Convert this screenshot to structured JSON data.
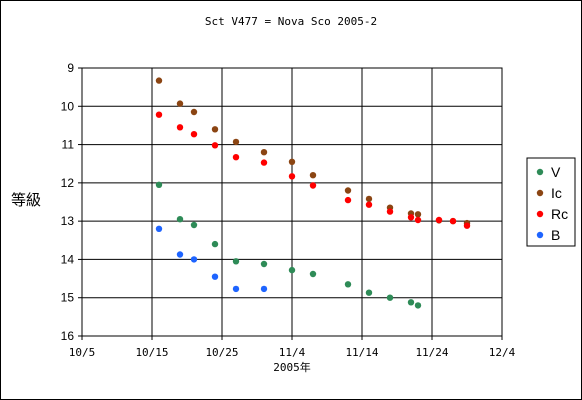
{
  "chart_data": {
    "type": "scatter",
    "title": "Sct V477 = Nova Sco 2005-2",
    "xlabel": "2005年",
    "ylabel": "等級",
    "x_ticks": [
      "10/5",
      "10/15",
      "10/25",
      "11/4",
      "11/14",
      "11/24",
      "12/4"
    ],
    "xlim": [
      "2005-10-05",
      "2005-12-04"
    ],
    "y_ticks": [
      "9",
      "10",
      "11",
      "12",
      "13",
      "14",
      "15",
      "16"
    ],
    "ylim": [
      16,
      9
    ],
    "y_inverted": true,
    "grid": true,
    "legend_position": "right",
    "series": [
      {
        "name": "V",
        "color": "#2e8b57",
        "points": [
          [
            "2005-10-16",
            12.05
          ],
          [
            "2005-10-19",
            12.95
          ],
          [
            "2005-10-21",
            13.1
          ],
          [
            "2005-10-24",
            13.6
          ],
          [
            "2005-10-27",
            14.05
          ],
          [
            "2005-10-31",
            14.12
          ],
          [
            "2005-11-04",
            14.28
          ],
          [
            "2005-11-07",
            14.38
          ],
          [
            "2005-11-12",
            14.65
          ],
          [
            "2005-11-15",
            14.87
          ],
          [
            "2005-11-18",
            15.0
          ],
          [
            "2005-11-21",
            15.12
          ],
          [
            "2005-11-22",
            15.2
          ]
        ]
      },
      {
        "name": "Ic",
        "color": "#8b4513",
        "points": [
          [
            "2005-10-16",
            9.33
          ],
          [
            "2005-10-19",
            9.93
          ],
          [
            "2005-10-21",
            10.15
          ],
          [
            "2005-10-24",
            10.6
          ],
          [
            "2005-10-27",
            10.93
          ],
          [
            "2005-10-31",
            11.2
          ],
          [
            "2005-11-04",
            11.45
          ],
          [
            "2005-11-07",
            11.8
          ],
          [
            "2005-11-12",
            12.2
          ],
          [
            "2005-11-15",
            12.42
          ],
          [
            "2005-11-18",
            12.65
          ],
          [
            "2005-11-21",
            12.8
          ],
          [
            "2005-11-22",
            12.82
          ],
          [
            "2005-11-25",
            12.98
          ],
          [
            "2005-11-27",
            13.0
          ],
          [
            "2005-11-29",
            13.05
          ]
        ]
      },
      {
        "name": "Rc",
        "color": "#ff0000",
        "points": [
          [
            "2005-10-16",
            10.22
          ],
          [
            "2005-10-19",
            10.55
          ],
          [
            "2005-10-21",
            10.73
          ],
          [
            "2005-10-24",
            11.02
          ],
          [
            "2005-10-27",
            11.33
          ],
          [
            "2005-10-31",
            11.47
          ],
          [
            "2005-11-04",
            11.83
          ],
          [
            "2005-11-07",
            12.07
          ],
          [
            "2005-11-12",
            12.45
          ],
          [
            "2005-11-15",
            12.57
          ],
          [
            "2005-11-18",
            12.75
          ],
          [
            "2005-11-21",
            12.9
          ],
          [
            "2005-11-22",
            12.97
          ],
          [
            "2005-11-25",
            12.97
          ],
          [
            "2005-11-27",
            13.0
          ],
          [
            "2005-11-29",
            13.12
          ]
        ]
      },
      {
        "name": "B",
        "color": "#1e64ff",
        "points": [
          [
            "2005-10-16",
            13.2
          ],
          [
            "2005-10-19",
            13.87
          ],
          [
            "2005-10-21",
            14.0
          ],
          [
            "2005-10-24",
            14.45
          ],
          [
            "2005-10-27",
            14.77
          ],
          [
            "2005-10-31",
            14.77
          ]
        ]
      }
    ]
  }
}
